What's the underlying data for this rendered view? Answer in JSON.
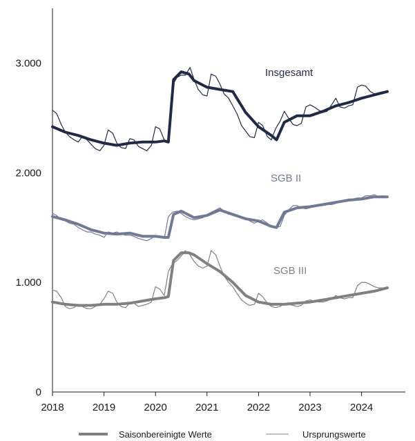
{
  "chart_data": {
    "type": "line",
    "x_ticks": [
      "2018",
      "2019",
      "2020",
      "2021",
      "2022",
      "2023",
      "2024"
    ],
    "y_ticks": [
      "0",
      "1.000",
      "2.000",
      "3.000"
    ],
    "ylim": [
      0,
      3500
    ],
    "xlim": [
      2018.0,
      2024.85
    ],
    "grid": false,
    "legend": {
      "position": "bottom",
      "items": [
        "Saisonbereinigte Werte",
        "Ursprungswerte"
      ]
    },
    "colors": {
      "insgesamt": "#1f2b44",
      "sgb2": "#6f7a94",
      "sgb3": "#808080"
    },
    "annotations": {
      "insgesamt": "Insgesamt",
      "sgb2": "SGB II",
      "sgb3": "SGB III"
    },
    "series": [
      {
        "key": "insgesamt",
        "kind": "saisonbereinigt",
        "x": [
          2018.0,
          2018.25,
          2018.5,
          2018.75,
          2019.0,
          2019.25,
          2019.5,
          2019.75,
          2020.0,
          2020.17,
          2020.25,
          2020.35,
          2020.5,
          2020.65,
          2020.75,
          2021.0,
          2021.25,
          2021.5,
          2021.75,
          2022.0,
          2022.25,
          2022.35,
          2022.5,
          2022.75,
          2023.0,
          2023.25,
          2023.5,
          2023.75,
          2024.0,
          2024.25,
          2024.5
        ],
        "y": [
          2420,
          2370,
          2340,
          2300,
          2270,
          2250,
          2270,
          2280,
          2280,
          2290,
          2280,
          2850,
          2920,
          2900,
          2840,
          2780,
          2760,
          2740,
          2550,
          2420,
          2340,
          2300,
          2460,
          2520,
          2520,
          2560,
          2610,
          2640,
          2680,
          2710,
          2740
        ]
      },
      {
        "key": "insgesamt",
        "kind": "ursprung",
        "x": [
          2018.0,
          2018.08,
          2018.17,
          2018.25,
          2018.33,
          2018.42,
          2018.5,
          2018.58,
          2018.67,
          2018.75,
          2018.83,
          2018.92,
          2019.0,
          2019.08,
          2019.17,
          2019.25,
          2019.33,
          2019.42,
          2019.5,
          2019.58,
          2019.67,
          2019.75,
          2019.83,
          2019.92,
          2020.0,
          2020.08,
          2020.17,
          2020.25,
          2020.33,
          2020.42,
          2020.5,
          2020.58,
          2020.67,
          2020.75,
          2020.83,
          2020.92,
          2021.0,
          2021.08,
          2021.17,
          2021.25,
          2021.33,
          2021.42,
          2021.5,
          2021.58,
          2021.67,
          2021.75,
          2021.83,
          2021.92,
          2022.0,
          2022.08,
          2022.17,
          2022.25,
          2022.33,
          2022.42,
          2022.5,
          2022.58,
          2022.67,
          2022.75,
          2022.83,
          2022.92,
          2023.0,
          2023.08,
          2023.17,
          2023.25,
          2023.33,
          2023.42,
          2023.5,
          2023.58,
          2023.67,
          2023.75,
          2023.83,
          2023.92,
          2024.0,
          2024.08,
          2024.17,
          2024.25,
          2024.33,
          2024.42
        ],
        "y": [
          2570,
          2540,
          2440,
          2370,
          2330,
          2300,
          2280,
          2330,
          2300,
          2260,
          2220,
          2200,
          2250,
          2390,
          2360,
          2270,
          2230,
          2220,
          2310,
          2300,
          2240,
          2220,
          2200,
          2250,
          2420,
          2400,
          2300,
          2290,
          2800,
          2870,
          2890,
          2890,
          2960,
          2850,
          2760,
          2710,
          2700,
          2900,
          2880,
          2810,
          2720,
          2680,
          2610,
          2540,
          2430,
          2380,
          2330,
          2320,
          2460,
          2430,
          2330,
          2300,
          2400,
          2470,
          2560,
          2500,
          2440,
          2430,
          2450,
          2600,
          2620,
          2600,
          2570,
          2550,
          2560,
          2620,
          2680,
          2600,
          2590,
          2610,
          2620,
          2780,
          2800,
          2790,
          2740,
          2720,
          2730,
          2740
        ]
      },
      {
        "key": "sgb2",
        "kind": "saisonbereinigt",
        "x": [
          2018.0,
          2018.25,
          2018.5,
          2018.75,
          2019.0,
          2019.25,
          2019.5,
          2019.75,
          2020.0,
          2020.17,
          2020.25,
          2020.35,
          2020.5,
          2020.75,
          2021.0,
          2021.25,
          2021.5,
          2021.75,
          2022.0,
          2022.25,
          2022.35,
          2022.5,
          2022.75,
          2023.0,
          2023.25,
          2023.5,
          2023.75,
          2024.0,
          2024.25,
          2024.5
        ],
        "y": [
          1600,
          1570,
          1530,
          1480,
          1450,
          1440,
          1450,
          1420,
          1420,
          1410,
          1410,
          1620,
          1650,
          1590,
          1610,
          1660,
          1620,
          1580,
          1560,
          1510,
          1500,
          1640,
          1680,
          1690,
          1710,
          1730,
          1750,
          1760,
          1780,
          1780
        ]
      },
      {
        "key": "sgb2",
        "kind": "ursprung",
        "x": [
          2018.0,
          2018.08,
          2018.17,
          2018.25,
          2018.33,
          2018.42,
          2018.5,
          2018.58,
          2018.67,
          2018.75,
          2018.83,
          2018.92,
          2019.0,
          2019.08,
          2019.17,
          2019.25,
          2019.33,
          2019.42,
          2019.5,
          2019.58,
          2019.67,
          2019.75,
          2019.83,
          2019.92,
          2020.0,
          2020.08,
          2020.17,
          2020.25,
          2020.33,
          2020.42,
          2020.5,
          2020.58,
          2020.67,
          2020.75,
          2020.83,
          2020.92,
          2021.0,
          2021.08,
          2021.17,
          2021.25,
          2021.33,
          2021.42,
          2021.5,
          2021.58,
          2021.67,
          2021.75,
          2021.83,
          2021.92,
          2022.0,
          2022.08,
          2022.17,
          2022.25,
          2022.33,
          2022.42,
          2022.5,
          2022.58,
          2022.67,
          2022.75,
          2022.83,
          2022.92,
          2023.0,
          2023.08,
          2023.17,
          2023.25,
          2023.33,
          2023.42,
          2023.5,
          2023.58,
          2023.67,
          2023.75,
          2023.83,
          2023.92,
          2024.0,
          2024.08,
          2024.17,
          2024.25,
          2024.33,
          2024.42
        ],
        "y": [
          1630,
          1610,
          1570,
          1560,
          1540,
          1530,
          1500,
          1480,
          1460,
          1460,
          1440,
          1430,
          1410,
          1460,
          1450,
          1460,
          1440,
          1430,
          1430,
          1420,
          1400,
          1390,
          1380,
          1400,
          1430,
          1420,
          1400,
          1600,
          1640,
          1650,
          1630,
          1600,
          1580,
          1570,
          1580,
          1590,
          1620,
          1640,
          1660,
          1680,
          1650,
          1620,
          1630,
          1600,
          1590,
          1590,
          1560,
          1540,
          1560,
          1570,
          1540,
          1510,
          1500,
          1510,
          1610,
          1660,
          1700,
          1700,
          1680,
          1670,
          1680,
          1700,
          1700,
          1700,
          1710,
          1710,
          1720,
          1740,
          1750,
          1760,
          1760,
          1770,
          1770,
          1790,
          1790,
          1800,
          1780,
          1790
        ]
      },
      {
        "key": "sgb3",
        "kind": "saisonbereinigt",
        "x": [
          2018.0,
          2018.25,
          2018.5,
          2018.75,
          2019.0,
          2019.25,
          2019.5,
          2019.75,
          2020.0,
          2020.17,
          2020.25,
          2020.35,
          2020.5,
          2020.65,
          2020.75,
          2021.0,
          2021.25,
          2021.5,
          2021.75,
          2022.0,
          2022.25,
          2022.5,
          2022.75,
          2023.0,
          2023.25,
          2023.5,
          2023.75,
          2024.0,
          2024.25,
          2024.5
        ],
        "y": [
          820,
          800,
          790,
          790,
          800,
          800,
          810,
          830,
          850,
          860,
          870,
          1200,
          1270,
          1270,
          1250,
          1170,
          1100,
          1000,
          880,
          820,
          800,
          800,
          810,
          820,
          840,
          860,
          880,
          900,
          920,
          950
        ]
      },
      {
        "key": "sgb3",
        "kind": "ursprung",
        "x": [
          2018.0,
          2018.08,
          2018.17,
          2018.25,
          2018.33,
          2018.42,
          2018.5,
          2018.58,
          2018.67,
          2018.75,
          2018.83,
          2018.92,
          2019.0,
          2019.08,
          2019.17,
          2019.25,
          2019.33,
          2019.42,
          2019.5,
          2019.58,
          2019.67,
          2019.75,
          2019.83,
          2019.92,
          2020.0,
          2020.08,
          2020.17,
          2020.25,
          2020.33,
          2020.42,
          2020.5,
          2020.58,
          2020.67,
          2020.75,
          2020.83,
          2020.92,
          2021.0,
          2021.08,
          2021.17,
          2021.25,
          2021.33,
          2021.42,
          2021.5,
          2021.58,
          2021.67,
          2021.75,
          2021.83,
          2021.92,
          2022.0,
          2022.08,
          2022.17,
          2022.25,
          2022.33,
          2022.42,
          2022.5,
          2022.58,
          2022.67,
          2022.75,
          2022.83,
          2022.92,
          2023.0,
          2023.08,
          2023.17,
          2023.25,
          2023.33,
          2023.42,
          2023.5,
          2023.58,
          2023.67,
          2023.75,
          2023.83,
          2023.92,
          2024.0,
          2024.08,
          2024.17,
          2024.25,
          2024.33,
          2024.42
        ],
        "y": [
          930,
          920,
          860,
          780,
          760,
          770,
          800,
          780,
          760,
          760,
          780,
          800,
          850,
          920,
          900,
          820,
          780,
          770,
          810,
          810,
          780,
          790,
          800,
          820,
          960,
          940,
          880,
          1100,
          1170,
          1200,
          1240,
          1290,
          1250,
          1190,
          1150,
          1130,
          1150,
          1290,
          1250,
          1150,
          1060,
          1000,
          960,
          900,
          840,
          810,
          790,
          800,
          900,
          870,
          810,
          780,
          770,
          780,
          810,
          800,
          790,
          780,
          790,
          830,
          840,
          830,
          820,
          820,
          830,
          850,
          880,
          860,
          850,
          860,
          860,
          970,
          1000,
          1000,
          980,
          960,
          950,
          950
        ]
      }
    ]
  }
}
